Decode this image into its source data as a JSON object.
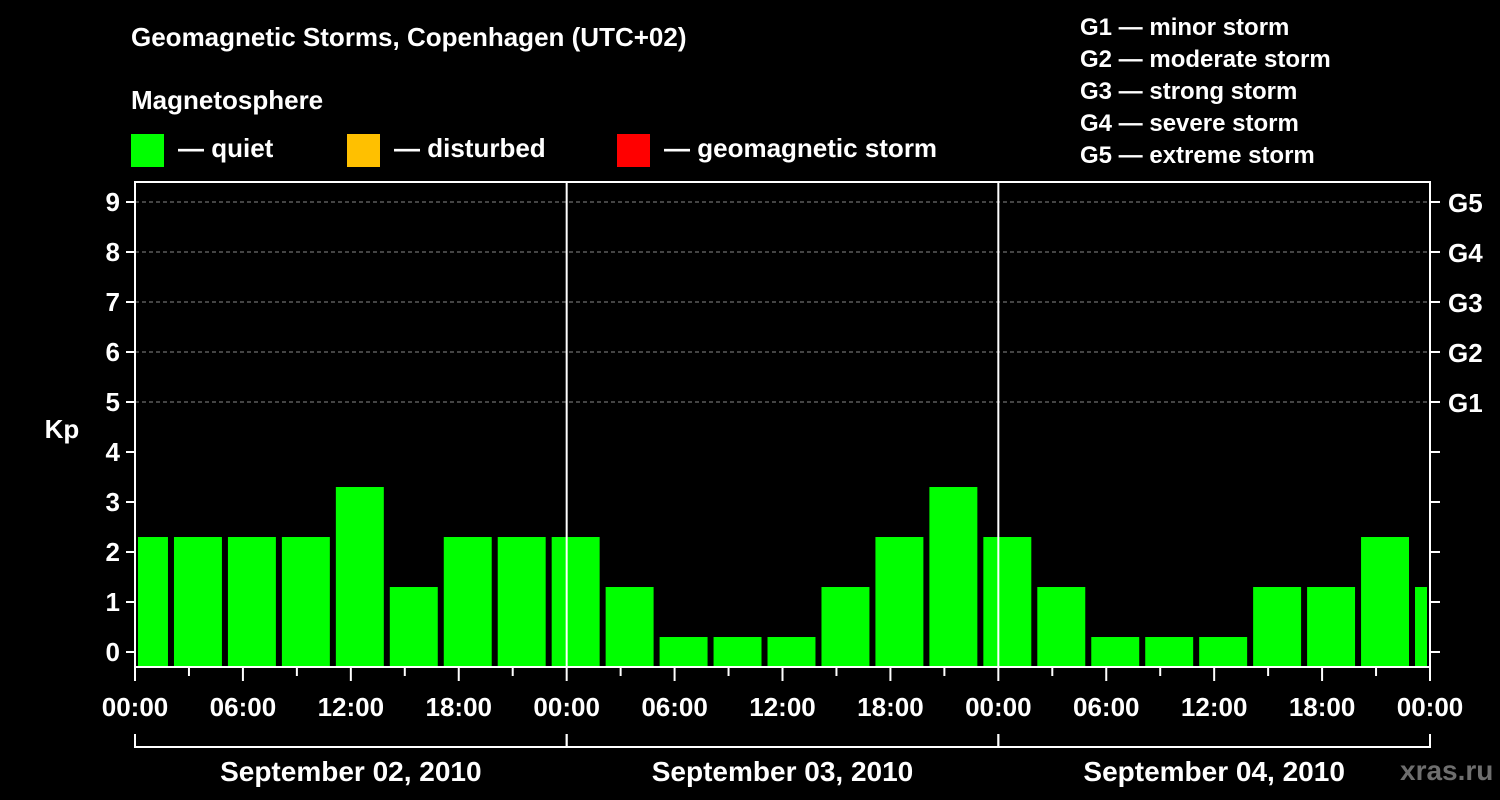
{
  "chart_data": {
    "type": "bar",
    "title": "Geomagnetic Storms, Copenhagen (UTC+02)",
    "ylabel": "Kp",
    "ylim": [
      0,
      9
    ],
    "yticks": [
      "0",
      "1",
      "2",
      "3",
      "4",
      "5",
      "6",
      "7",
      "8",
      "9"
    ],
    "right_ticks": [
      {
        "kp": 5,
        "label": "G1"
      },
      {
        "kp": 6,
        "label": "G2"
      },
      {
        "kp": 7,
        "label": "G3"
      },
      {
        "kp": 8,
        "label": "G4"
      },
      {
        "kp": 9,
        "label": "G5"
      }
    ],
    "xlim_hours": [
      0,
      72
    ],
    "xtick_labels": [
      {
        "hour": 0,
        "label": "00:00"
      },
      {
        "hour": 6,
        "label": "06:00"
      },
      {
        "hour": 12,
        "label": "12:00"
      },
      {
        "hour": 18,
        "label": "18:00"
      },
      {
        "hour": 24,
        "label": "00:00"
      },
      {
        "hour": 30,
        "label": "06:00"
      },
      {
        "hour": 36,
        "label": "12:00"
      },
      {
        "hour": 42,
        "label": "18:00"
      },
      {
        "hour": 48,
        "label": "00:00"
      },
      {
        "hour": 54,
        "label": "06:00"
      },
      {
        "hour": 60,
        "label": "12:00"
      },
      {
        "hour": 66,
        "label": "18:00"
      },
      {
        "hour": 72,
        "label": "00:00"
      }
    ],
    "days": [
      {
        "label": "September 02, 2010",
        "start_hour": 0,
        "end_hour": 24
      },
      {
        "label": "September 03, 2010",
        "start_hour": 24,
        "end_hour": 48
      },
      {
        "label": "September 04, 2010",
        "start_hour": 48,
        "end_hour": 72
      }
    ],
    "bars": [
      {
        "start_hour": 0,
        "end_hour": 2,
        "kp": 2,
        "status": "quiet"
      },
      {
        "start_hour": 2,
        "end_hour": 5,
        "kp": 2,
        "status": "quiet"
      },
      {
        "start_hour": 5,
        "end_hour": 8,
        "kp": 2,
        "status": "quiet"
      },
      {
        "start_hour": 8,
        "end_hour": 11,
        "kp": 2,
        "status": "quiet"
      },
      {
        "start_hour": 11,
        "end_hour": 14,
        "kp": 3,
        "status": "quiet"
      },
      {
        "start_hour": 14,
        "end_hour": 17,
        "kp": 1,
        "status": "quiet"
      },
      {
        "start_hour": 17,
        "end_hour": 20,
        "kp": 2,
        "status": "quiet"
      },
      {
        "start_hour": 20,
        "end_hour": 23,
        "kp": 2,
        "status": "quiet"
      },
      {
        "start_hour": 23,
        "end_hour": 26,
        "kp": 2,
        "status": "quiet"
      },
      {
        "start_hour": 26,
        "end_hour": 29,
        "kp": 1,
        "status": "quiet"
      },
      {
        "start_hour": 29,
        "end_hour": 32,
        "kp": 0,
        "status": "quiet"
      },
      {
        "start_hour": 32,
        "end_hour": 35,
        "kp": 0,
        "status": "quiet"
      },
      {
        "start_hour": 35,
        "end_hour": 38,
        "kp": 0,
        "status": "quiet"
      },
      {
        "start_hour": 38,
        "end_hour": 41,
        "kp": 1,
        "status": "quiet"
      },
      {
        "start_hour": 41,
        "end_hour": 44,
        "kp": 2,
        "status": "quiet"
      },
      {
        "start_hour": 44,
        "end_hour": 47,
        "kp": 3,
        "status": "quiet"
      },
      {
        "start_hour": 47,
        "end_hour": 50,
        "kp": 2,
        "status": "quiet"
      },
      {
        "start_hour": 50,
        "end_hour": 53,
        "kp": 1,
        "status": "quiet"
      },
      {
        "start_hour": 53,
        "end_hour": 56,
        "kp": 0,
        "status": "quiet"
      },
      {
        "start_hour": 56,
        "end_hour": 59,
        "kp": 0,
        "status": "quiet"
      },
      {
        "start_hour": 59,
        "end_hour": 62,
        "kp": 0,
        "status": "quiet"
      },
      {
        "start_hour": 62,
        "end_hour": 65,
        "kp": 1,
        "status": "quiet"
      },
      {
        "start_hour": 65,
        "end_hour": 68,
        "kp": 1,
        "status": "quiet"
      },
      {
        "start_hour": 68,
        "end_hour": 71,
        "kp": 2,
        "status": "quiet"
      },
      {
        "start_hour": 71,
        "end_hour": 72,
        "kp": 1,
        "status": "quiet"
      }
    ]
  },
  "legend": {
    "title": "Magnetosphere",
    "items": [
      {
        "label": "— quiet",
        "color": "#00ff00"
      },
      {
        "label": "— disturbed",
        "color": "#ffc000"
      },
      {
        "label": "— geomagnetic storm",
        "color": "#ff0000"
      }
    ]
  },
  "storm_scale": [
    "G1 — minor storm",
    "G2 — moderate storm",
    "G3 — strong storm",
    "G4 — severe storm",
    "G5 — extreme storm"
  ],
  "colors": {
    "quiet": "#00ff00",
    "disturbed": "#ffc000",
    "storm": "#ff0000",
    "background": "#000000"
  },
  "watermark": "xras.ru"
}
